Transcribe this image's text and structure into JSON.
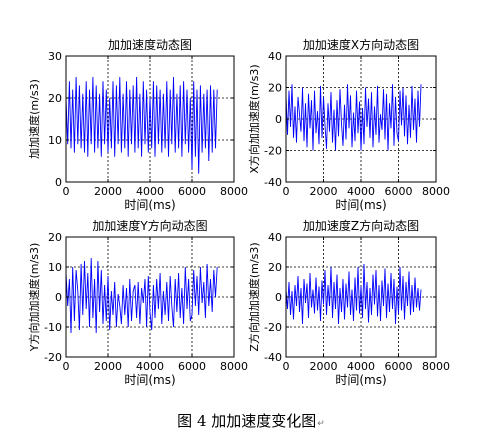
{
  "caption": {
    "text": "图 4  加加速度变化图",
    "mark": "↵"
  },
  "colors": {
    "line": "#0000ff",
    "axes": "#000000",
    "grid": "#000000",
    "background": "#ffffff"
  },
  "chart_data": [
    {
      "id": "total",
      "type": "line",
      "title": "加加速度动态图",
      "xlabel": "时间(ms)",
      "ylabel": "加加速度(m/s3)",
      "xlim": [
        0,
        8000
      ],
      "ylim": [
        0,
        30
      ],
      "xticks": [
        0,
        2000,
        4000,
        6000,
        8000
      ],
      "yticks": [
        0,
        10,
        20,
        30
      ],
      "grid": true,
      "series": [
        {
          "x": [
            0,
            80,
            160,
            240,
            320,
            400,
            480,
            560,
            640,
            720,
            800,
            880,
            960,
            1040,
            1120,
            1200,
            1280,
            1360,
            1440,
            1520,
            1600,
            1680,
            1760,
            1840,
            1920,
            2000,
            2080,
            2160,
            2240,
            2320,
            2400,
            2480,
            2560,
            2640,
            2720,
            2800,
            2880,
            2960,
            3040,
            3120,
            3200,
            3280,
            3360,
            3440,
            3520,
            3600,
            3680,
            3760,
            3840,
            3920,
            4000,
            4080,
            4160,
            4240,
            4320,
            4400,
            4480,
            4560,
            4640,
            4720,
            4800,
            4880,
            4960,
            5040,
            5120,
            5200,
            5280,
            5360,
            5440,
            5520,
            5600,
            5680,
            5760,
            5840,
            5920,
            6000,
            6080,
            6160,
            6240,
            6320,
            6400,
            6480,
            6560,
            6640,
            6720,
            6800,
            6880,
            6960,
            7040,
            7120,
            7200
          ],
          "y": [
            20,
            9,
            24,
            8,
            22,
            7,
            25,
            9,
            23,
            8,
            21,
            7,
            24,
            6,
            22,
            9,
            25,
            7,
            23,
            8,
            21,
            6,
            24,
            9,
            22,
            7,
            20,
            8,
            24,
            6,
            23,
            9,
            25,
            7,
            21,
            8,
            24,
            6,
            22,
            9,
            23,
            7,
            25,
            8,
            21,
            6,
            24,
            9,
            22,
            7,
            20,
            8,
            24,
            6,
            23,
            9,
            22,
            7,
            21,
            8,
            24,
            6,
            22,
            9,
            25,
            7,
            21,
            8,
            23,
            6,
            24,
            9,
            22,
            7,
            20,
            3,
            24,
            6,
            22,
            2,
            23,
            7,
            21,
            8,
            22,
            5,
            23,
            7,
            22,
            8,
            22
          ]
        }
      ]
    },
    {
      "id": "x",
      "type": "line",
      "title": "加加速度X方向动态图",
      "xlabel": "时间(ms)",
      "ylabel": "X方向加加速度(m/s3)",
      "xlim": [
        0,
        8000
      ],
      "ylim": [
        -40,
        40
      ],
      "xticks": [
        0,
        2000,
        4000,
        6000,
        8000
      ],
      "yticks": [
        -40,
        -20,
        0,
        20,
        40
      ],
      "grid": true,
      "series": [
        {
          "x": [
            0,
            80,
            160,
            240,
            320,
            400,
            480,
            560,
            640,
            720,
            800,
            880,
            960,
            1040,
            1120,
            1200,
            1280,
            1360,
            1440,
            1520,
            1600,
            1680,
            1760,
            1840,
            1920,
            2000,
            2080,
            2160,
            2240,
            2320,
            2400,
            2480,
            2560,
            2640,
            2720,
            2800,
            2880,
            2960,
            3040,
            3120,
            3200,
            3280,
            3360,
            3440,
            3520,
            3600,
            3680,
            3760,
            3840,
            3920,
            4000,
            4080,
            4160,
            4240,
            4320,
            4400,
            4480,
            4560,
            4640,
            4720,
            4800,
            4880,
            4960,
            5040,
            5120,
            5200,
            5280,
            5360,
            5440,
            5520,
            5600,
            5680,
            5760,
            5840,
            5920,
            6000,
            6080,
            6160,
            6240,
            6320,
            6400,
            6480,
            6560,
            6640,
            6720,
            6800,
            6880,
            6960,
            7040,
            7120,
            7200
          ],
          "y": [
            15,
            -10,
            18,
            -5,
            22,
            -12,
            8,
            -15,
            14,
            3,
            -8,
            20,
            -14,
            10,
            -18,
            16,
            -6,
            12,
            -20,
            18,
            -9,
            5,
            -16,
            21,
            -12,
            14,
            -4,
            -19,
            10,
            -8,
            17,
            -15,
            6,
            -20,
            12,
            -11,
            19,
            -3,
            -17,
            9,
            -13,
            22,
            -6,
            15,
            -18,
            4,
            -14,
            18,
            -9,
            11,
            -20,
            7,
            -16,
            20,
            -5,
            13,
            -12,
            17,
            -18,
            8,
            -10,
            21,
            -15,
            3,
            -7,
            19,
            -13,
            16,
            -20,
            10,
            -6,
            22,
            -17,
            14,
            -9,
            -14,
            18,
            -4,
            20,
            -11,
            15,
            -16,
            9,
            -12,
            21,
            -7,
            13,
            -15,
            18,
            -5,
            22
          ]
        }
      ]
    },
    {
      "id": "y",
      "type": "line",
      "title": "加加速度Y方向动态图",
      "xlabel": "时间(ms)",
      "ylabel": "Y方向加加速度(m/s3)",
      "xlim": [
        0,
        8000
      ],
      "ylim": [
        -20,
        20
      ],
      "xticks": [
        0,
        2000,
        4000,
        6000,
        8000
      ],
      "yticks": [
        -20,
        -10,
        0,
        10,
        20
      ],
      "grid": true,
      "series": [
        {
          "x": [
            0,
            80,
            160,
            240,
            320,
            400,
            480,
            560,
            640,
            720,
            800,
            880,
            960,
            1040,
            1120,
            1200,
            1280,
            1360,
            1440,
            1520,
            1600,
            1680,
            1760,
            1840,
            1920,
            2000,
            2080,
            2160,
            2240,
            2320,
            2400,
            2480,
            2560,
            2640,
            2720,
            2800,
            2880,
            2960,
            3040,
            3120,
            3200,
            3280,
            3360,
            3440,
            3520,
            3600,
            3680,
            3760,
            3840,
            3920,
            4000,
            4080,
            4160,
            4240,
            4320,
            4400,
            4480,
            4560,
            4640,
            4720,
            4800,
            4880,
            4960,
            5040,
            5120,
            5200,
            5280,
            5360,
            5440,
            5520,
            5600,
            5680,
            5760,
            5840,
            5920,
            6000,
            6080,
            6160,
            6240,
            6320,
            6400,
            6480,
            6560,
            6640,
            6720,
            6800,
            6880,
            6960,
            7040,
            7120,
            7200
          ],
          "y": [
            8,
            -3,
            6,
            -12,
            10,
            -8,
            9,
            2,
            -11,
            11,
            -6,
            12,
            -4,
            8,
            -10,
            13,
            -7,
            6,
            -12,
            12,
            -5,
            9,
            -9,
            4,
            -8,
            7,
            -11,
            2,
            -6,
            5,
            -10,
            1,
            -3,
            -9,
            4,
            -6,
            3,
            -10,
            6,
            -8,
            2,
            4,
            -7,
            5,
            -9,
            3,
            -2,
            6,
            -10,
            7,
            -5,
            -11,
            4,
            -7,
            6,
            -4,
            8,
            -9,
            2,
            -6,
            5,
            -8,
            7,
            -3,
            -10,
            6,
            -5,
            8,
            -7,
            3,
            -9,
            10,
            -4,
            6,
            -8,
            -6,
            9,
            -3,
            7,
            -6,
            10,
            -2,
            5,
            -7,
            11,
            -3,
            6,
            -5,
            9,
            0,
            10
          ]
        }
      ]
    },
    {
      "id": "z",
      "type": "line",
      "title": "加加速度Z方向动态图",
      "xlabel": "时间(ms)",
      "ylabel": "Z方向加加速度(m/s3)",
      "xlim": [
        0,
        8000
      ],
      "ylim": [
        -40,
        40
      ],
      "xticks": [
        0,
        2000,
        4000,
        6000,
        8000
      ],
      "yticks": [
        -40,
        -20,
        0,
        20,
        40
      ],
      "grid": true,
      "series": [
        {
          "x": [
            0,
            80,
            160,
            240,
            320,
            400,
            480,
            560,
            640,
            720,
            800,
            880,
            960,
            1040,
            1120,
            1200,
            1280,
            1360,
            1440,
            1520,
            1600,
            1680,
            1760,
            1840,
            1920,
            2000,
            2080,
            2160,
            2240,
            2320,
            2400,
            2480,
            2560,
            2640,
            2720,
            2800,
            2880,
            2960,
            3040,
            3120,
            3200,
            3280,
            3360,
            3440,
            3520,
            3600,
            3680,
            3760,
            3840,
            3920,
            4000,
            4080,
            4160,
            4240,
            4320,
            4400,
            4480,
            4560,
            4640,
            4720,
            4800,
            4880,
            4960,
            5040,
            5120,
            5200,
            5280,
            5360,
            5440,
            5520,
            5600,
            5680,
            5760,
            5840,
            5920,
            6000,
            6080,
            6160,
            6240,
            6320,
            6400,
            6480,
            6560,
            6640,
            6720,
            6800,
            6880,
            6960,
            7040,
            7120,
            7200
          ],
          "y": [
            5,
            -8,
            10,
            -12,
            4,
            -15,
            8,
            -6,
            14,
            -10,
            6,
            -18,
            12,
            -4,
            9,
            -14,
            16,
            -7,
            5,
            -11,
            13,
            -9,
            7,
            -16,
            11,
            -5,
            18,
            -12,
            8,
            -6,
            20,
            -14,
            10,
            -8,
            15,
            -18,
            6,
            -10,
            12,
            -15,
            9,
            -7,
            17,
            -12,
            5,
            -16,
            13,
            -9,
            20,
            -11,
            7,
            -14,
            22,
            -8,
            10,
            -17,
            6,
            -12,
            15,
            -5,
            18,
            -13,
            8,
            -16,
            11,
            -6,
            19,
            -14,
            9,
            -10,
            16,
            -8,
            12,
            -18,
            7,
            -11,
            20,
            -9,
            14,
            -15,
            10,
            -6,
            17,
            -12,
            8,
            -10,
            13,
            -7,
            6,
            -9,
            5
          ]
        }
      ]
    }
  ]
}
